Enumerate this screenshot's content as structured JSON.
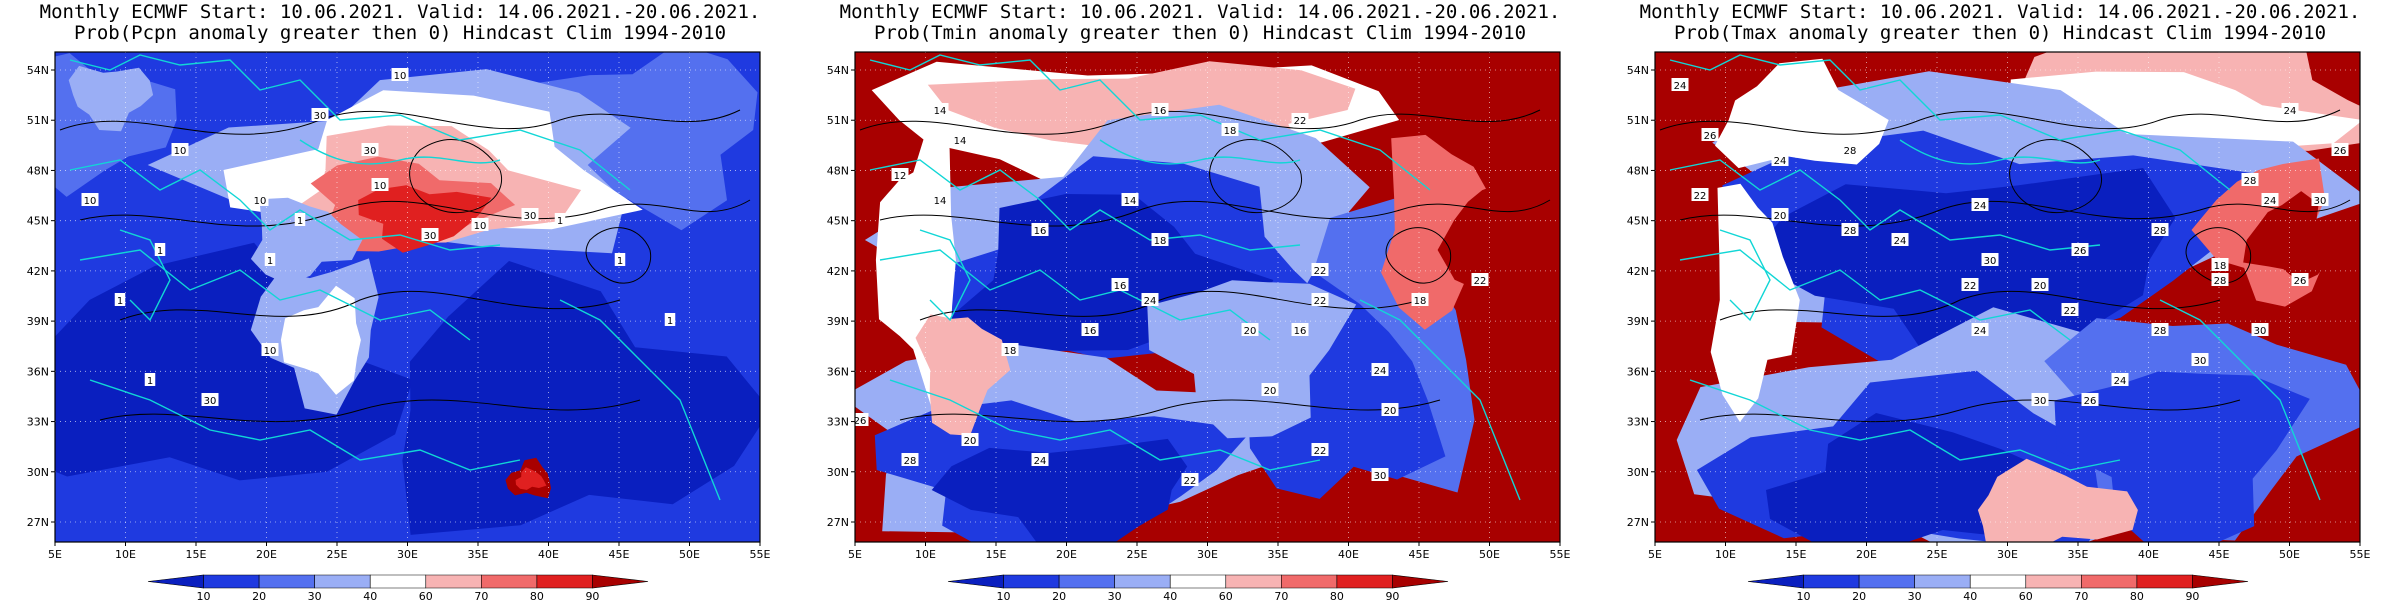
{
  "panels": [
    {
      "id": "pcpn",
      "title_line1": "Monthly ECMWF Start: 10.06.2021. Valid: 14.06.2021.-20.06.2021.",
      "title_line2": "Prob(Pcpn anomaly greater then 0) Hindcast Clim 1994-2010",
      "contour_labels": [
        "10",
        "1",
        "30",
        "10",
        "30",
        "10",
        "30",
        "30",
        "10",
        "1",
        "10",
        "1",
        "1",
        "30",
        "10",
        "10",
        "1",
        "1",
        "1",
        "1"
      ]
    },
    {
      "id": "tmin",
      "title_line1": "Monthly ECMWF Start: 10.06.2021. Valid: 14.06.2021.-20.06.2021.",
      "title_line2": "Prob(Tmin anomaly greater then 0) Hindcast Clim 1994-2010",
      "contour_labels": [
        "14",
        "14",
        "16",
        "18",
        "22",
        "12",
        "14",
        "16",
        "14",
        "18",
        "16",
        "22",
        "20",
        "22",
        "16",
        "18",
        "22",
        "20",
        "22",
        "24",
        "18",
        "16",
        "20",
        "26",
        "28",
        "24",
        "22",
        "20",
        "30",
        "24"
      ]
    },
    {
      "id": "tmax",
      "title_line1": "Monthly ECMWF Start: 10.06.2021. Valid: 14.06.2021.-20.06.2021.",
      "title_line2": "Prob(Tmax anomaly greater then 0) Hindcast Clim 1994-2010",
      "contour_labels": [
        "24",
        "26",
        "28",
        "24",
        "22",
        "20",
        "28",
        "24",
        "30",
        "26",
        "28",
        "18",
        "22",
        "20",
        "22",
        "24",
        "26",
        "28",
        "30",
        "24",
        "30",
        "26",
        "28",
        "24",
        "30",
        "26",
        "24",
        "28",
        "30",
        "24"
      ]
    }
  ],
  "map_axes": {
    "lon_labels": [
      "5E",
      "10E",
      "15E",
      "20E",
      "25E",
      "30E",
      "35E",
      "40E",
      "45E",
      "50E",
      "55E"
    ],
    "lat_labels": [
      "54N",
      "51N",
      "48N",
      "45N",
      "42N",
      "39N",
      "36N",
      "33N",
      "30N",
      "27N"
    ]
  },
  "colorbar": {
    "labels": [
      "10",
      "20",
      "30",
      "40",
      "60",
      "70",
      "80",
      "90"
    ],
    "colors": [
      "#0a1fbf",
      "#1f3ae0",
      "#5470ef",
      "#9aaef5",
      "#ffffff",
      "#f7b3b3",
      "#f06a6a",
      "#e02020",
      "#a80000"
    ]
  },
  "style": {
    "coast_color": "#11d6d6",
    "contour_color": "#000000"
  }
}
